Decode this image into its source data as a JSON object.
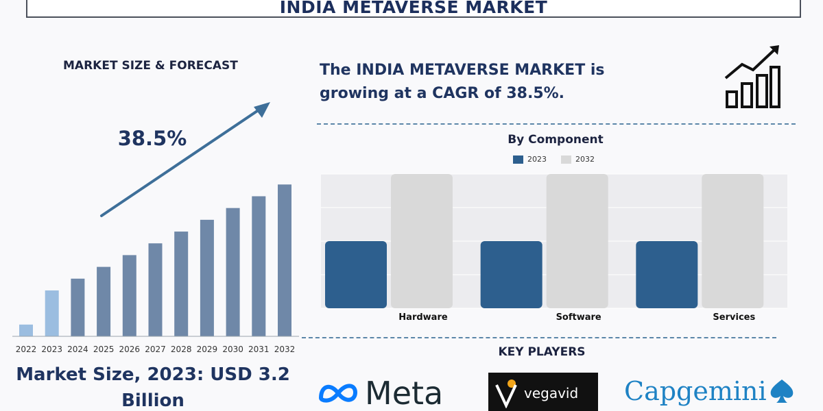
{
  "title": "INDIA METAVERSE MARKET",
  "left_section_title": "MARKET SIZE & FORECAST",
  "growth_label": "38.5%",
  "cagr_statement": "The INDIA METAVERSE MARKET is growing at a CAGR of 38.5%.",
  "component_section_title": "By Component",
  "key_players_title": "KEY PLAYERS",
  "market_size_text": "Market Size, 2023: USD 3.2 Billion",
  "key_players": [
    {
      "name": "Meta"
    },
    {
      "name": "vegavid"
    },
    {
      "name": "Capgemini"
    }
  ],
  "colors": {
    "title": "#1c2f5c",
    "bar_default": "#6f88a8",
    "bar_2023": "#9bbde0",
    "bar_2022": "#9bbde0",
    "series_2023": "#2d5f8e",
    "series_2032": "#d9d9d9",
    "arrow": "#3e6f99",
    "meta_blue": "#0a7cff",
    "capgemini_blue": "#1e82c4"
  },
  "icons": {
    "growth": "bar-chart-growth-icon",
    "meta": "meta-infinity-icon",
    "vegavid": "vegavid-v-icon",
    "capgemini": "capgemini-spade-icon"
  },
  "chart_data": [
    {
      "type": "bar",
      "title": "MARKET SIZE & FORECAST",
      "categories": [
        "2022",
        "2023",
        "2024",
        "2025",
        "2026",
        "2027",
        "2028",
        "2029",
        "2030",
        "2031",
        "2032"
      ],
      "values": [
        1.0,
        3.9,
        4.9,
        5.9,
        6.9,
        7.9,
        8.9,
        9.9,
        10.9,
        11.9,
        12.9
      ],
      "ylim": [
        0,
        13.5
      ],
      "xlabel": "",
      "ylabel": "",
      "grid": false,
      "annotation": "38.5%"
    },
    {
      "type": "bar",
      "title": "By Component",
      "categories": [
        "Hardware",
        "Software",
        "Services"
      ],
      "series": [
        {
          "name": "2023",
          "values": [
            1.0,
            1.0,
            1.0
          ]
        },
        {
          "name": "2032",
          "values": [
            2.0,
            2.0,
            2.0
          ]
        }
      ],
      "ylim": [
        0,
        2.0
      ],
      "xlabel": "",
      "ylabel": "",
      "grid": true,
      "legend": "top-center"
    }
  ]
}
